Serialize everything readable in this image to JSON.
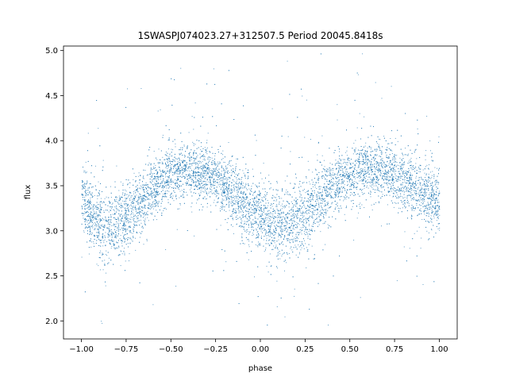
{
  "chart_data": {
    "type": "scatter",
    "title": "1SWASPJ074023.27+312507.5 Period 20045.8418s",
    "xlabel": "phase",
    "ylabel": "flux",
    "xlim": [
      -1.1,
      1.1
    ],
    "ylim": [
      1.8,
      5.05
    ],
    "x_ticks": [
      -1.0,
      -0.75,
      -0.5,
      -0.25,
      0.0,
      0.25,
      0.5,
      0.75,
      1.0
    ],
    "x_tick_labels": [
      "−1.00",
      "−0.75",
      "−0.50",
      "−0.25",
      "0.00",
      "0.25",
      "0.50",
      "0.75",
      "1.00"
    ],
    "y_ticks": [
      2.0,
      2.5,
      3.0,
      3.5,
      4.0,
      4.5,
      5.0
    ],
    "y_tick_labels": [
      "2.0",
      "2.5",
      "3.0",
      "3.5",
      "4.0",
      "4.5",
      "5.0"
    ],
    "grid": false,
    "legend": "none",
    "marker_color": "#1f77b4",
    "series": [
      {
        "x": [
          -1.0,
          -0.95,
          -0.9,
          -0.85,
          -0.8,
          -0.75,
          -0.7,
          -0.65,
          -0.6,
          -0.55,
          -0.5,
          -0.45,
          -0.4,
          -0.35,
          -0.3,
          -0.25,
          -0.2,
          -0.15,
          -0.1,
          -0.05,
          0.0,
          0.05,
          0.1,
          0.15,
          0.2,
          0.25,
          0.3,
          0.35,
          0.4,
          0.45,
          0.5,
          0.55,
          0.6,
          0.65,
          0.7,
          0.75,
          0.8,
          0.85,
          0.9,
          0.95,
          1.0
        ],
        "y": [
          3.35,
          3.2,
          3.1,
          3.05,
          3.08,
          3.15,
          3.25,
          3.37,
          3.47,
          3.56,
          3.63,
          3.67,
          3.68,
          3.67,
          3.63,
          3.57,
          3.5,
          3.42,
          3.32,
          3.22,
          3.14,
          3.08,
          3.06,
          3.07,
          3.12,
          3.2,
          3.3,
          3.4,
          3.49,
          3.56,
          3.61,
          3.64,
          3.66,
          3.67,
          3.66,
          3.62,
          3.57,
          3.5,
          3.45,
          3.4,
          3.33
        ],
        "y_spread": [
          0.2,
          0.21,
          0.22,
          0.22,
          0.22,
          0.21,
          0.2,
          0.19,
          0.18,
          0.18,
          0.17,
          0.17,
          0.17,
          0.17,
          0.17,
          0.17,
          0.18,
          0.19,
          0.2,
          0.21,
          0.21,
          0.22,
          0.22,
          0.22,
          0.22,
          0.21,
          0.2,
          0.19,
          0.18,
          0.18,
          0.17,
          0.17,
          0.17,
          0.17,
          0.17,
          0.18,
          0.18,
          0.19,
          0.19,
          0.2,
          0.2
        ]
      }
    ]
  }
}
